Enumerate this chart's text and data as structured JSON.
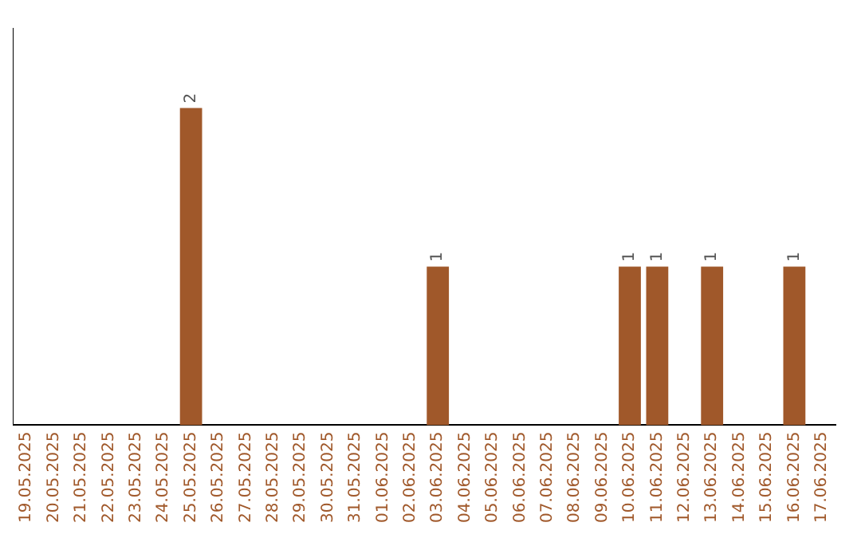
{
  "chart_data": {
    "type": "bar",
    "categories": [
      "19.05.2025",
      "20.05.2025",
      "21.05.2025",
      "22.05.2025",
      "23.05.2025",
      "24.05.2025",
      "25.05.2025",
      "26.05.2025",
      "27.05.2025",
      "28.05.2025",
      "29.05.2025",
      "30.05.2025",
      "31.05.2025",
      "01.06.2025",
      "02.06.2025",
      "03.06.2025",
      "04.06.2025",
      "05.06.2025",
      "06.06.2025",
      "07.06.2025",
      "08.06.2025",
      "09.06.2025",
      "10.06.2025",
      "11.06.2025",
      "12.06.2025",
      "13.06.2025",
      "14.06.2025",
      "15.06.2025",
      "16.06.2025",
      "17.06.2025"
    ],
    "values": [
      0,
      0,
      0,
      0,
      0,
      0,
      2,
      0,
      0,
      0,
      0,
      0,
      0,
      0,
      0,
      1,
      0,
      0,
      0,
      0,
      0,
      0,
      1,
      1,
      0,
      1,
      0,
      0,
      1,
      0
    ],
    "value_labels": [
      null,
      null,
      null,
      null,
      null,
      null,
      "2",
      null,
      null,
      null,
      null,
      null,
      null,
      null,
      null,
      "1",
      null,
      null,
      null,
      null,
      null,
      null,
      "1",
      "1",
      null,
      "1",
      null,
      null,
      "1",
      null
    ],
    "color": "#a0582a",
    "tick_labels": "x",
    "grid": false,
    "legend": false
  }
}
